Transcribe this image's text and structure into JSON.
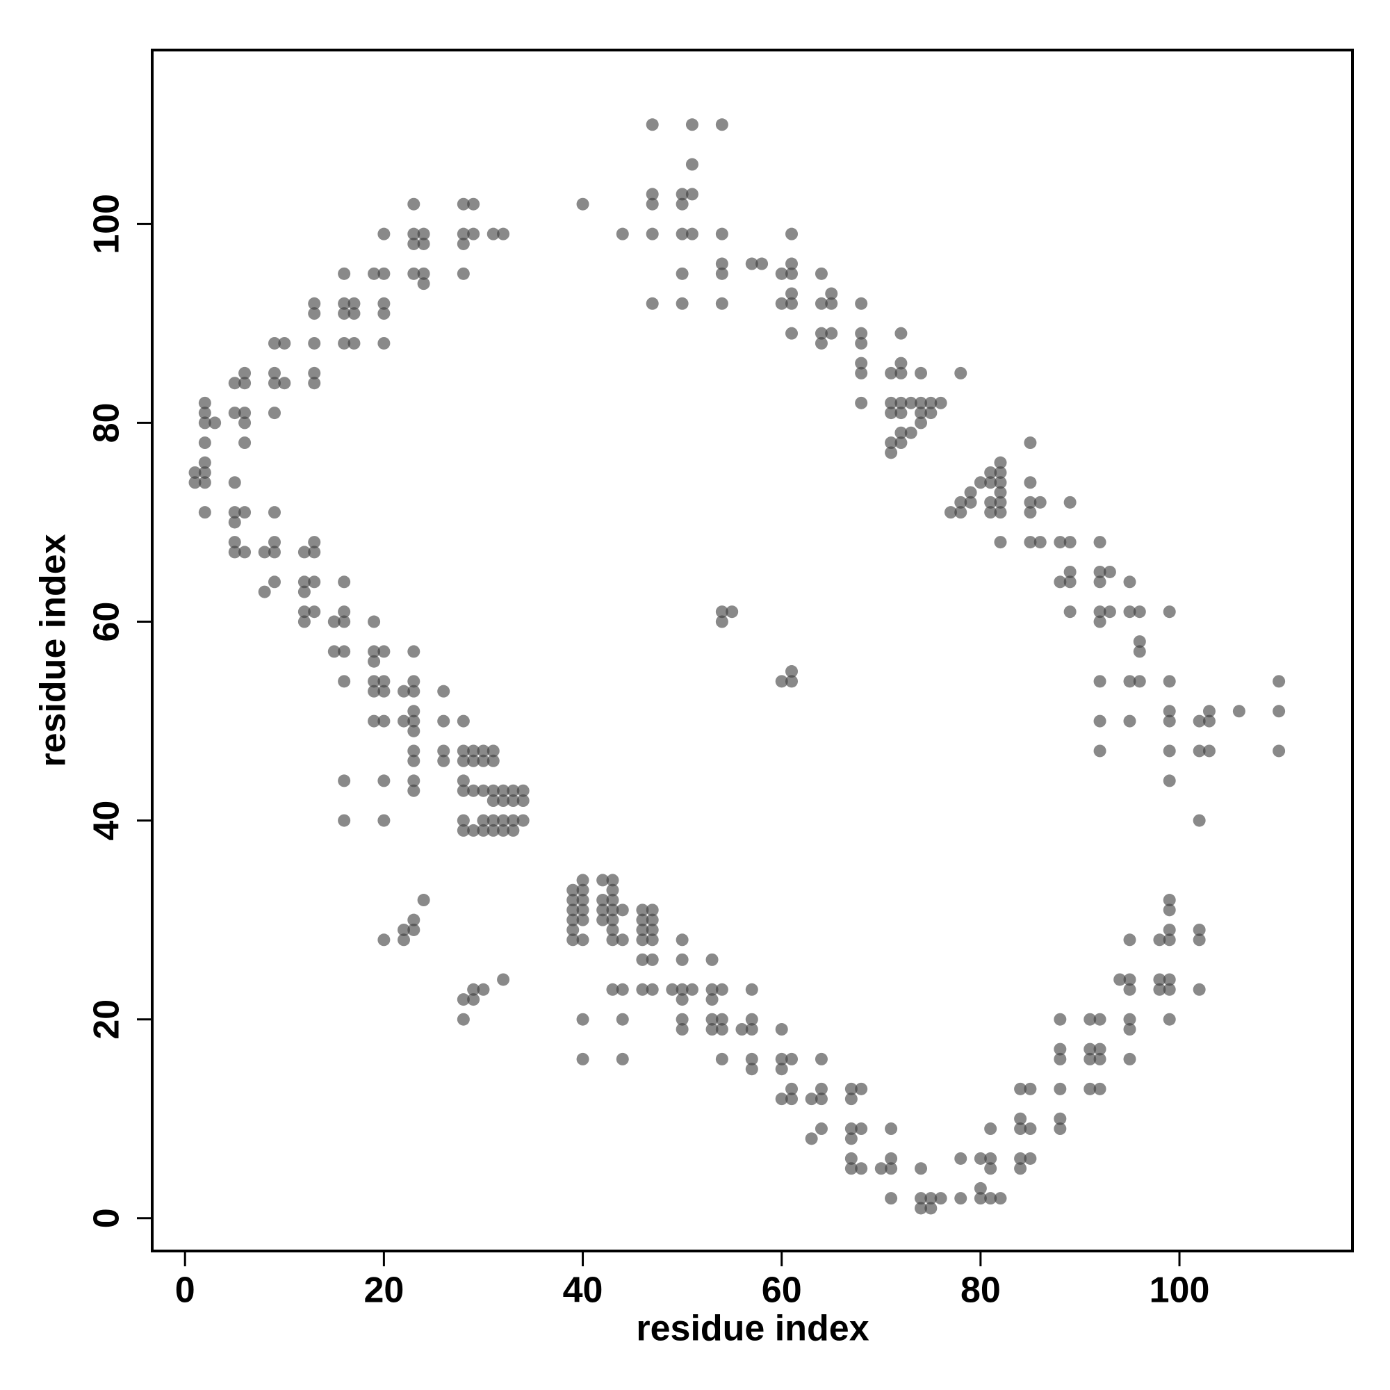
{
  "chart_data": {
    "type": "scatter",
    "x_label": "residue index",
    "y_label": "residue index",
    "xlim": [
      -3.3,
      117.4
    ],
    "ylim": [
      -3.3,
      117.5
    ],
    "xticks": [
      0,
      20,
      40,
      60,
      80,
      100
    ],
    "yticks": [
      0,
      20,
      40,
      60,
      80,
      100
    ],
    "grid": false,
    "marker_color": "#3a3a3a",
    "marker_alpha": 0.6,
    "x": [
      1,
      1,
      2,
      2,
      2,
      2,
      2,
      2,
      2,
      2,
      3,
      5,
      5,
      5,
      5,
      5,
      5,
      5,
      6,
      6,
      6,
      6,
      6,
      6,
      6,
      8,
      8,
      9,
      9,
      9,
      9,
      9,
      9,
      9,
      9,
      10,
      10,
      12,
      12,
      12,
      12,
      12,
      13,
      13,
      13,
      13,
      13,
      13,
      13,
      13,
      13,
      15,
      15,
      16,
      16,
      16,
      16,
      16,
      16,
      16,
      16,
      16,
      16,
      16,
      17,
      17,
      17,
      19,
      19,
      19,
      19,
      19,
      19,
      19,
      20,
      20,
      20,
      20,
      20,
      20,
      20,
      20,
      20,
      20,
      20,
      20,
      22,
      22,
      22,
      22,
      23,
      23,
      23,
      23,
      23,
      23,
      23,
      23,
      23,
      23,
      23,
      23,
      23,
      23,
      23,
      23,
      24,
      24,
      24,
      24,
      24,
      26,
      26,
      26,
      26,
      28,
      28,
      28,
      28,
      28,
      28,
      28,
      28,
      28,
      28,
      28,
      28,
      28,
      29,
      29,
      29,
      29,
      29,
      29,
      29,
      29,
      30,
      30,
      30,
      30,
      30,
      30,
      31,
      31,
      31,
      31,
      31,
      31,
      31,
      32,
      32,
      32,
      32,
      32,
      32,
      33,
      33,
      33,
      33,
      34,
      34,
      34,
      39,
      39,
      39,
      39,
      39,
      39,
      40,
      40,
      40,
      40,
      40,
      40,
      40,
      40,
      40,
      42,
      42,
      42,
      42,
      43,
      43,
      43,
      43,
      43,
      43,
      43,
      43,
      44,
      44,
      44,
      44,
      44,
      44,
      46,
      46,
      46,
      46,
      46,
      46,
      47,
      47,
      47,
      47,
      47,
      47,
      47,
      47,
      47,
      47,
      47,
      49,
      50,
      50,
      50,
      50,
      50,
      50,
      50,
      50,
      50,
      50,
      50,
      51,
      51,
      51,
      51,
      51,
      53,
      53,
      53,
      53,
      53,
      54,
      54,
      54,
      54,
      54,
      54,
      54,
      54,
      54,
      54,
      54,
      55,
      56,
      57,
      57,
      57,
      57,
      57,
      57,
      58,
      60,
      60,
      60,
      60,
      60,
      60,
      60,
      61,
      61,
      61,
      61,
      61,
      61,
      61,
      61,
      61,
      61,
      61,
      63,
      63,
      64,
      64,
      64,
      64,
      64,
      64,
      64,
      64,
      65,
      65,
      65,
      67,
      67,
      67,
      67,
      67,
      67,
      68,
      68,
      68,
      68,
      68,
      68,
      68,
      68,
      68,
      70,
      71,
      71,
      71,
      71,
      71,
      71,
      71,
      71,
      71,
      72,
      72,
      72,
      72,
      72,
      72,
      72,
      73,
      73,
      74,
      74,
      74,
      74,
      74,
      74,
      74,
      75,
      75,
      75,
      75,
      76,
      76,
      77,
      78,
      78,
      78,
      78,
      78,
      79,
      79,
      80,
      80,
      80,
      80,
      81,
      81,
      81,
      81,
      81,
      81,
      81,
      81,
      82,
      82,
      82,
      82,
      82,
      82,
      82,
      82,
      84,
      84,
      84,
      84,
      84,
      85,
      85,
      85,
      85,
      85,
      85,
      85,
      85,
      86,
      86,
      88,
      88,
      88,
      88,
      88,
      88,
      88,
      88,
      89,
      89,
      89,
      89,
      89,
      91,
      91,
      91,
      91,
      92,
      92,
      92,
      92,
      92,
      92,
      92,
      92,
      92,
      92,
      92,
      92,
      93,
      93,
      94,
      95,
      95,
      95,
      95,
      95,
      95,
      95,
      95,
      95,
      95,
      96,
      96,
      96,
      96,
      98,
      98,
      98,
      99,
      99,
      99,
      99,
      99,
      99,
      99,
      99,
      99,
      99,
      99,
      99,
      99,
      102,
      102,
      102,
      102,
      102,
      102,
      103,
      103,
      103,
      106,
      110,
      110,
      110
    ],
    "values": [
      75,
      74,
      82,
      81,
      80,
      78,
      76,
      75,
      74,
      71,
      80,
      84,
      81,
      74,
      71,
      70,
      68,
      67,
      85,
      84,
      81,
      80,
      78,
      71,
      67,
      67,
      63,
      88,
      85,
      84,
      81,
      71,
      68,
      67,
      64,
      88,
      84,
      67,
      64,
      63,
      61,
      60,
      92,
      91,
      88,
      85,
      84,
      68,
      67,
      64,
      61,
      60,
      57,
      95,
      92,
      91,
      88,
      64,
      61,
      60,
      57,
      54,
      44,
      40,
      92,
      91,
      88,
      95,
      60,
      57,
      56,
      54,
      53,
      50,
      99,
      95,
      92,
      91,
      88,
      57,
      54,
      53,
      50,
      44,
      40,
      28,
      53,
      50,
      29,
      28,
      102,
      99,
      98,
      95,
      57,
      54,
      53,
      51,
      50,
      49,
      47,
      46,
      44,
      43,
      30,
      29,
      99,
      98,
      95,
      94,
      32,
      53,
      50,
      47,
      46,
      102,
      99,
      98,
      95,
      50,
      47,
      46,
      44,
      43,
      40,
      39,
      22,
      20,
      102,
      99,
      47,
      46,
      43,
      39,
      23,
      22,
      47,
      46,
      43,
      40,
      39,
      23,
      99,
      47,
      46,
      43,
      42,
      40,
      39,
      99,
      43,
      42,
      40,
      39,
      24,
      43,
      42,
      40,
      39,
      43,
      42,
      40,
      33,
      32,
      31,
      30,
      29,
      28,
      102,
      34,
      33,
      32,
      31,
      30,
      28,
      20,
      16,
      34,
      32,
      31,
      30,
      34,
      33,
      32,
      31,
      30,
      29,
      28,
      23,
      99,
      31,
      28,
      23,
      20,
      16,
      31,
      30,
      29,
      28,
      26,
      23,
      110,
      103,
      102,
      99,
      92,
      31,
      30,
      29,
      28,
      26,
      23,
      23,
      103,
      102,
      99,
      95,
      92,
      28,
      26,
      23,
      22,
      20,
      19,
      110,
      106,
      103,
      99,
      23,
      26,
      23,
      22,
      20,
      19,
      110,
      99,
      96,
      95,
      92,
      61,
      60,
      23,
      20,
      19,
      16,
      61,
      19,
      96,
      23,
      20,
      19,
      16,
      15,
      96,
      95,
      92,
      54,
      19,
      16,
      15,
      12,
      99,
      96,
      95,
      93,
      92,
      89,
      55,
      54,
      16,
      13,
      12,
      12,
      8,
      95,
      92,
      89,
      88,
      16,
      13,
      12,
      9,
      93,
      92,
      89,
      13,
      12,
      9,
      8,
      6,
      5,
      92,
      89,
      88,
      86,
      85,
      82,
      13,
      9,
      5,
      5,
      85,
      82,
      81,
      78,
      77,
      9,
      6,
      5,
      2,
      89,
      86,
      85,
      82,
      81,
      79,
      78,
      82,
      79,
      85,
      82,
      81,
      80,
      5,
      2,
      1,
      82,
      81,
      2,
      1,
      82,
      2,
      71,
      85,
      72,
      71,
      6,
      2,
      73,
      72,
      74,
      6,
      3,
      2,
      75,
      74,
      72,
      71,
      9,
      6,
      5,
      2,
      76,
      75,
      74,
      73,
      72,
      71,
      68,
      2,
      13,
      10,
      9,
      6,
      5,
      78,
      74,
      72,
      71,
      68,
      13,
      9,
      6,
      72,
      68,
      68,
      64,
      20,
      17,
      16,
      13,
      10,
      9,
      72,
      68,
      65,
      64,
      61,
      20,
      17,
      16,
      13,
      68,
      65,
      64,
      61,
      60,
      54,
      50,
      47,
      20,
      17,
      16,
      13,
      65,
      61,
      24,
      64,
      61,
      54,
      50,
      28,
      24,
      23,
      20,
      19,
      16,
      61,
      58,
      57,
      54,
      28,
      24,
      23,
      61,
      54,
      51,
      50,
      47,
      44,
      32,
      31,
      29,
      28,
      24,
      23,
      20,
      50,
      47,
      40,
      29,
      28,
      23,
      51,
      50,
      47,
      51,
      54,
      51,
      47
    ]
  }
}
